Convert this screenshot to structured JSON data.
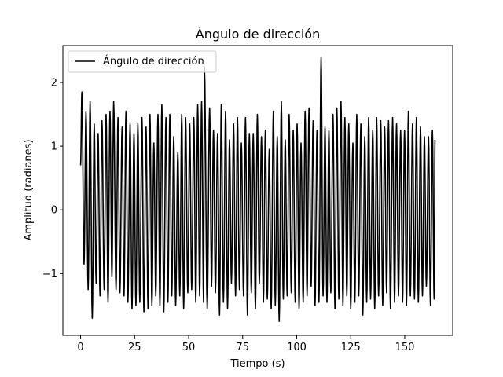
{
  "chart_data": {
    "type": "line",
    "title": "Ángulo de dirección",
    "xlabel": "Tiempo (s)",
    "ylabel": "Amplitud (radianes)",
    "xlim": [
      -8.2,
      172.2
    ],
    "ylim": [
      -1.97,
      2.58
    ],
    "xticks": [
      0,
      25,
      50,
      75,
      100,
      125,
      150
    ],
    "xtick_labels": [
      "0",
      "25",
      "50",
      "75",
      "100",
      "125",
      "150"
    ],
    "yticks": [
      -1,
      0,
      1,
      2
    ],
    "ytick_labels": [
      "−1",
      "0",
      "1",
      "2"
    ],
    "grid": false,
    "legend": "upper left",
    "series": [
      {
        "name": "Ángulo de dirección",
        "color": "#000000",
        "x_start": 0,
        "x_end": 164,
        "peak_times": [
          0.6,
          2.5,
          4.4,
          6.3,
          8.1,
          9.9,
          11.8,
          13.6,
          15.3,
          17.3,
          19.2,
          21.0,
          22.9,
          24.7,
          26.5,
          28.4,
          30.3,
          32.1,
          33.9,
          35.8,
          37.6,
          39.5,
          41.3,
          43.1,
          45.0,
          46.8,
          48.6,
          50.5,
          52.4,
          54.2,
          56.0,
          57.3,
          59.7,
          61.5,
          63.4,
          65.1,
          67.1,
          68.9,
          70.8,
          72.6,
          74.4,
          76.3,
          78.1,
          79.9,
          81.8,
          83.7,
          85.5,
          87.3,
          89.2,
          91.0,
          92.9,
          94.7,
          96.5,
          98.4,
          100.2,
          102.0,
          103.9,
          105.7,
          107.6,
          109.4,
          111.3,
          113.1,
          114.9,
          116.8,
          118.6,
          120.5,
          122.3,
          124.1,
          126.0,
          127.8,
          129.7,
          131.5,
          133.3,
          135.2,
          137.0,
          138.9,
          140.7,
          142.5,
          144.4,
          146.2,
          148.1,
          149.9,
          151.7,
          153.6,
          155.4,
          157.3,
          159.1,
          161.0,
          162.8
        ],
        "peak_values": [
          1.85,
          1.55,
          1.7,
          1.35,
          1.2,
          1.4,
          1.5,
          1.55,
          1.7,
          1.45,
          1.3,
          1.55,
          1.35,
          1.2,
          1.35,
          1.45,
          1.3,
          1.5,
          1.05,
          1.5,
          1.65,
          1.45,
          1.5,
          1.15,
          0.9,
          1.5,
          1.45,
          1.35,
          1.45,
          1.65,
          1.7,
          2.25,
          1.6,
          1.25,
          1.2,
          1.65,
          1.55,
          1.1,
          1.35,
          1.45,
          1.05,
          1.45,
          1.2,
          1.2,
          1.5,
          1.15,
          1.25,
          0.95,
          1.55,
          1.15,
          1.7,
          1.1,
          1.5,
          1.25,
          1.35,
          1.05,
          1.55,
          1.6,
          1.4,
          1.25,
          2.4,
          1.3,
          1.25,
          1.5,
          1.6,
          1.7,
          1.45,
          1.35,
          1.05,
          1.5,
          1.35,
          1.15,
          1.45,
          1.25,
          1.45,
          1.4,
          1.3,
          1.4,
          1.45,
          1.35,
          1.25,
          1.25,
          1.55,
          1.35,
          1.45,
          1.3,
          1.15,
          1.15,
          1.25
        ],
        "trough_times": [
          1.6,
          3.5,
          5.4,
          7.2,
          9.0,
          10.9,
          12.7,
          14.5,
          16.4,
          18.2,
          20.1,
          21.9,
          23.8,
          25.6,
          27.4,
          29.3,
          31.2,
          33.0,
          34.8,
          36.7,
          38.5,
          40.4,
          42.2,
          44.0,
          45.9,
          47.7,
          49.6,
          51.4,
          53.3,
          55.1,
          56.9,
          58.6,
          60.6,
          62.4,
          64.3,
          66.1,
          68.0,
          69.8,
          71.7,
          73.5,
          75.4,
          77.2,
          79.0,
          80.9,
          82.7,
          84.6,
          86.4,
          88.2,
          90.1,
          91.9,
          93.8,
          95.6,
          97.5,
          99.3,
          101.1,
          103.0,
          104.8,
          106.7,
          108.5,
          110.3,
          112.2,
          114.0,
          115.8,
          117.7,
          119.5,
          121.4,
          123.2,
          125.0,
          126.9,
          128.7,
          130.6,
          132.4,
          134.2,
          136.1,
          137.9,
          139.8,
          141.6,
          143.4,
          145.3,
          147.1,
          149.0,
          150.8,
          152.6,
          154.5,
          156.3,
          158.2,
          160.0,
          161.9,
          163.6
        ],
        "trough_values": [
          -0.85,
          -1.25,
          -1.7,
          -1.15,
          -1.35,
          -1.25,
          -1.45,
          -1.05,
          -1.25,
          -1.3,
          -1.35,
          -1.45,
          -1.55,
          -1.5,
          -1.45,
          -1.6,
          -1.55,
          -1.5,
          -1.35,
          -1.5,
          -1.6,
          -1.45,
          -1.35,
          -1.5,
          -1.35,
          -1.55,
          -1.3,
          -1.25,
          -1.45,
          -1.35,
          -1.45,
          -1.55,
          -1.2,
          -1.3,
          -1.65,
          -1.45,
          -1.55,
          -1.15,
          -1.35,
          -1.25,
          -1.35,
          -1.65,
          -1.3,
          -1.55,
          -1.15,
          -1.45,
          -1.4,
          -1.55,
          -1.5,
          -1.75,
          -1.4,
          -1.35,
          -1.3,
          -1.45,
          -1.55,
          -1.45,
          -1.35,
          -1.2,
          -1.5,
          -1.45,
          -1.35,
          -1.45,
          -1.3,
          -1.55,
          -1.4,
          -1.5,
          -1.35,
          -1.55,
          -1.45,
          -1.35,
          -1.65,
          -1.45,
          -1.4,
          -1.55,
          -1.35,
          -1.5,
          -1.3,
          -1.55,
          -1.45,
          -1.35,
          -1.45,
          -1.5,
          -1.35,
          -1.4,
          -1.45,
          -1.35,
          -1.2,
          -1.5,
          -1.4
        ],
        "start_value": 0.7,
        "end_value": 1.1
      }
    ]
  }
}
